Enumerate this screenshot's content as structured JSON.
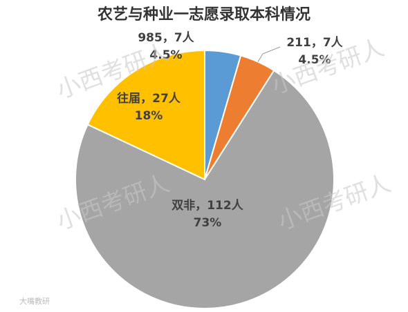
{
  "chart_data": {
    "type": "pie",
    "title": "农艺与种业一志愿录取本科情况",
    "categories": [
      "985，7人",
      "211，7人",
      "双非，112人",
      "往届，27人"
    ],
    "values": [
      4.5,
      4.5,
      73,
      18
    ],
    "value_labels": [
      "4.5%",
      "4.5%",
      "73%",
      "18%"
    ],
    "colors": [
      "#5b9bd5",
      "#ed7d31",
      "#a5a5a5",
      "#ffc000"
    ],
    "watermark": "小西考研人",
    "source_mark": "大嘴教研"
  }
}
